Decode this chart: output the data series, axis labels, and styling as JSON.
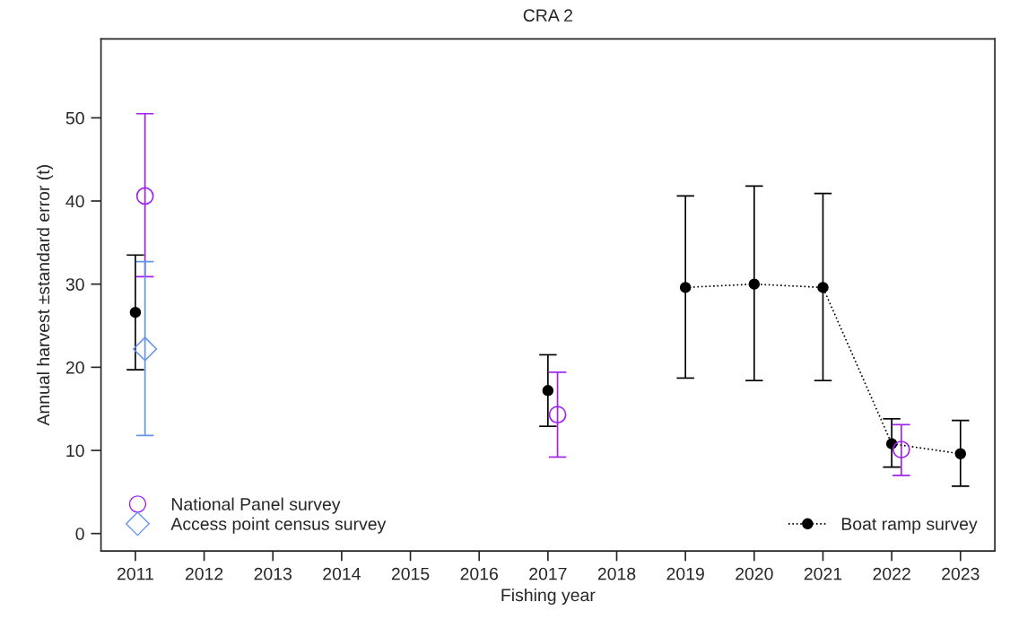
{
  "chart_data": {
    "type": "scatter",
    "title": "CRA 2",
    "xlabel": "Fishing year",
    "ylabel": "Annual harvest ±standard error (t)",
    "xlim": [
      2010.5,
      2023.5
    ],
    "xticks": [
      2011,
      2012,
      2013,
      2014,
      2015,
      2016,
      2017,
      2018,
      2019,
      2020,
      2021,
      2022,
      2023
    ],
    "ylim": [
      -2.1,
      59.5
    ],
    "yticks": [
      0,
      10,
      20,
      30,
      40,
      50
    ],
    "grid": false,
    "legend": "bottom left",
    "series": [
      {
        "name": "Boat ramp survey",
        "type": "line",
        "color": "#000000",
        "marker": "circle",
        "line_style": "dotted",
        "x": [
          2011,
          2014,
          2017,
          2018,
          2019,
          2020,
          2021,
          2022,
          2023
        ],
        "values": [
          26.6,
          null,
          17.2,
          null,
          29.6,
          30.0,
          29.6,
          10.8,
          9.6
        ],
        "errors": [
          [
            19.7,
            33.5
          ],
          null,
          [
            12.9,
            21.5
          ],
          null,
          [
            18.7,
            40.6
          ],
          [
            18.4,
            41.8
          ],
          [
            18.4,
            40.9
          ],
          [
            8.0,
            13.8
          ],
          [
            5.7,
            13.6
          ]
        ]
      },
      {
        "name": "National Panel survey",
        "color": "#a020f0",
        "marker": "circle",
        "x": [
          2011.14,
          2017.14,
          2022.14
        ],
        "values": [
          40.6,
          14.3,
          10.1
        ],
        "errors": [
          [
            30.9,
            50.5
          ],
          [
            9.2,
            19.4
          ],
          [
            7.0,
            13.1
          ]
        ]
      },
      {
        "name": "Access point census survey",
        "color": "#6495ed",
        "marker": "diamond",
        "x": [
          2011.14
        ],
        "values": [
          22.2
        ],
        "errors": [
          [
            11.8,
            32.7
          ]
        ]
      }
    ]
  }
}
